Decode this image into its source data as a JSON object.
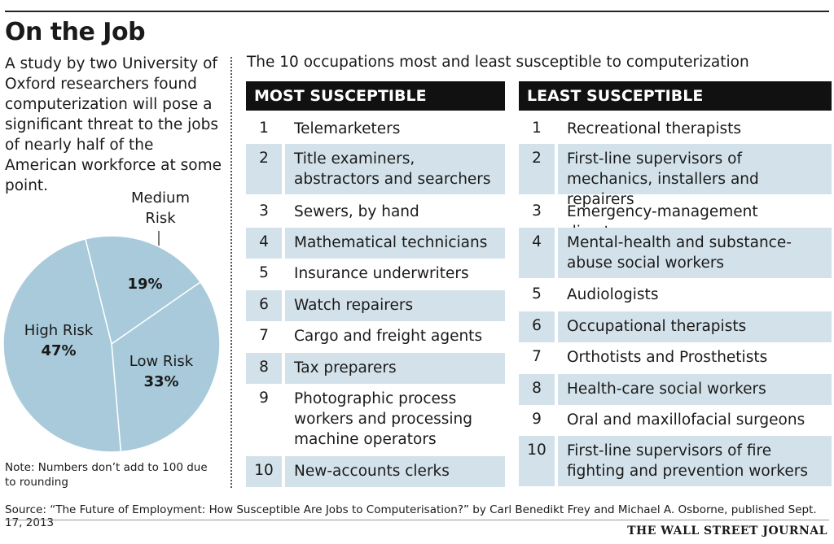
{
  "header": {
    "title": "On the Job",
    "intro": "A study by two University of Oxford researchers found computerization will pose a significant threat to the jobs of nearly half of the American workforce at some point.",
    "subtitle": "The 10 occupations most and least susceptible to computerization"
  },
  "chart_data": [
    {
      "type": "pie",
      "slices": [
        {
          "label": "High Risk",
          "value": 47,
          "value_label": "47%"
        },
        {
          "label": "Medium Risk",
          "value": 19,
          "value_label": "19%"
        },
        {
          "label": "Low Risk",
          "value": 33,
          "value_label": "33%"
        }
      ],
      "color": "#a8cadb"
    },
    {
      "type": "table",
      "columns": [
        "MOST SUSCEPTIBLE",
        "LEAST SUSCEPTIBLE"
      ],
      "most": [
        {
          "rank": "1",
          "occupation": "Telemarketers"
        },
        {
          "rank": "2",
          "occupation": "Title examiners, abstractors and searchers"
        },
        {
          "rank": "3",
          "occupation": "Sewers, by hand"
        },
        {
          "rank": "4",
          "occupation": "Mathematical technicians"
        },
        {
          "rank": "5",
          "occupation": "Insurance underwriters"
        },
        {
          "rank": "6",
          "occupation": "Watch repairers"
        },
        {
          "rank": "7",
          "occupation": "Cargo and freight agents"
        },
        {
          "rank": "8",
          "occupation": "Tax preparers"
        },
        {
          "rank": "9",
          "occupation": "Photographic process workers and processing machine operators"
        },
        {
          "rank": "10",
          "occupation": "New-accounts clerks"
        }
      ],
      "least": [
        {
          "rank": "1",
          "occupation": "Recreational therapists"
        },
        {
          "rank": "2",
          "occupation": "First-line supervisors of mechanics, installers and repairers"
        },
        {
          "rank": "3",
          "occupation": "Emergency-management directors"
        },
        {
          "rank": "4",
          "occupation": "Mental-health and substance-abuse social workers"
        },
        {
          "rank": "5",
          "occupation": "Audiologists"
        },
        {
          "rank": "6",
          "occupation": "Occupational therapists"
        },
        {
          "rank": "7",
          "occupation": "Orthotists and Prosthetists"
        },
        {
          "rank": "8",
          "occupation": "Health-care social workers"
        },
        {
          "rank": "9",
          "occupation": "Oral and maxillofacial surgeons"
        },
        {
          "rank": "10",
          "occupation": "First-line supervisors of fire fighting and prevention workers"
        }
      ]
    }
  ],
  "colors": {
    "pie_fill": "#a8cadb",
    "row_shade": "#d3e2ea",
    "header_bg": "#111111"
  },
  "footer": {
    "note": "Note: Numbers don’t add to 100 due to rounding",
    "source": "Source: “The Future of Employment: How Susceptible Are Jobs to Computerisation?” by Carl Benedikt Frey and Michael A. Osborne, published Sept. 17, 2013",
    "publisher": "THE WALL STREET JOURNAL"
  }
}
